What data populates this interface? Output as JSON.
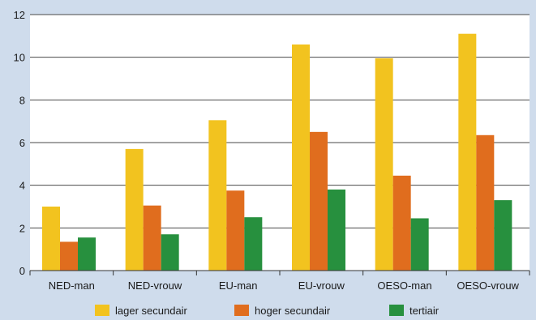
{
  "chart_data": {
    "type": "bar",
    "title": "",
    "xlabel": "",
    "ylabel": "",
    "categories": [
      "NED-man",
      "NED-vrouw",
      "EU-man",
      "EU-vrouw",
      "OESO-man",
      "OESO-vrouw"
    ],
    "ylim": [
      0,
      12
    ],
    "yticks": [
      0,
      2,
      4,
      6,
      8,
      10,
      12
    ],
    "grid": true,
    "legend_position": "bottom",
    "series": [
      {
        "name": "lager secundair",
        "color": "#f2c31f",
        "values": [
          3.0,
          5.7,
          7.05,
          10.6,
          9.95,
          11.1
        ]
      },
      {
        "name": "hoger secundair",
        "color": "#e06d1e",
        "values": [
          1.35,
          3.05,
          3.75,
          6.5,
          4.45,
          6.35
        ]
      },
      {
        "name": "tertiair",
        "color": "#27903e",
        "values": [
          1.55,
          1.7,
          2.5,
          3.8,
          2.45,
          3.3
        ]
      }
    ]
  }
}
